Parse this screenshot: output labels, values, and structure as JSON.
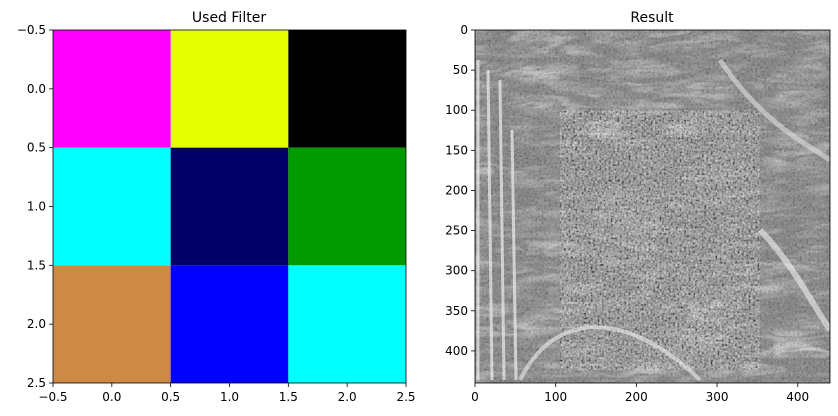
{
  "chart_data": [
    {
      "type": "heatmap",
      "title": "Used Filter",
      "xlim": [
        -0.5,
        2.5
      ],
      "ylim": [
        2.5,
        -0.5
      ],
      "xticks": [
        -0.5,
        0.0,
        0.5,
        1.0,
        1.5,
        2.0,
        2.5
      ],
      "xtick_labels": [
        "−0.5",
        "0.0",
        "0.5",
        "1.0",
        "1.5",
        "2.0",
        "2.5"
      ],
      "yticks": [
        -0.5,
        0.0,
        0.5,
        1.0,
        1.5,
        2.0,
        2.5
      ],
      "ytick_labels": [
        "−0.5",
        "0.0",
        "0.5",
        "1.0",
        "1.5",
        "2.0",
        "2.5"
      ],
      "cells": [
        [
          "#ff00ff",
          "#e6ff00",
          "#000000"
        ],
        [
          "#00ffff",
          "#000066",
          "#009900"
        ],
        [
          "#cc8a45",
          "#0000ff",
          "#00ffff"
        ]
      ]
    },
    {
      "type": "heatmap",
      "title": "Result",
      "colormap": "gray",
      "size": [
        440,
        440
      ],
      "xlim": [
        0,
        440
      ],
      "ylim": [
        440,
        0
      ],
      "xticks": [
        0,
        100,
        200,
        300,
        400
      ],
      "xtick_labels": [
        "0",
        "100",
        "200",
        "300",
        "400"
      ],
      "yticks": [
        0,
        50,
        100,
        150,
        200,
        250,
        300,
        350,
        400
      ],
      "ytick_labels": [
        "0",
        "50",
        "100",
        "150",
        "200",
        "250",
        "300",
        "350",
        "400"
      ]
    }
  ]
}
